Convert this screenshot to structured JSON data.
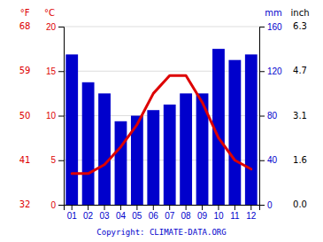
{
  "chart_data": {
    "type": "bar",
    "categories": [
      "01",
      "02",
      "03",
      "04",
      "05",
      "06",
      "07",
      "08",
      "09",
      "10",
      "11",
      "12"
    ],
    "series": [
      {
        "type": "bar",
        "color": "#0000cc",
        "axis": "y2",
        "values": [
          135,
          110,
          100,
          75,
          80,
          85,
          90,
          100,
          100,
          140,
          130,
          135
        ]
      },
      {
        "type": "line",
        "color": "#dd0000",
        "values": [
          3.5,
          3.5,
          4.5,
          6.5,
          9.0,
          12.5,
          14.5,
          14.5,
          11.5,
          7.5,
          5.0,
          4.0
        ]
      }
    ],
    "ylim": [
      0,
      20
    ],
    "yticks": [
      0,
      5,
      10,
      15,
      20
    ],
    "ylabel": "°C",
    "y2lim": [
      0,
      160
    ],
    "y2ticks": [
      0,
      40,
      80,
      120,
      160
    ],
    "y2label": "mm",
    "y_outer": {
      "label": "°F",
      "ticks": [
        {
          "value": 0,
          "label": "32"
        },
        {
          "value": 5,
          "label": "41"
        },
        {
          "value": 10,
          "label": "50"
        },
        {
          "value": 15,
          "label": "59"
        },
        {
          "value": 20,
          "label": "68"
        }
      ]
    },
    "y2_outer": {
      "label": "inch",
      "ticks": [
        {
          "value": 0,
          "label": "0.0"
        },
        {
          "value": 40,
          "label": "1.6"
        },
        {
          "value": 80,
          "label": "3.1"
        },
        {
          "value": 120,
          "label": "4.7"
        },
        {
          "value": 160,
          "label": "6.3"
        }
      ]
    },
    "annotation": "Copyright: CLIMATE-DATA.ORG",
    "grid": true
  }
}
